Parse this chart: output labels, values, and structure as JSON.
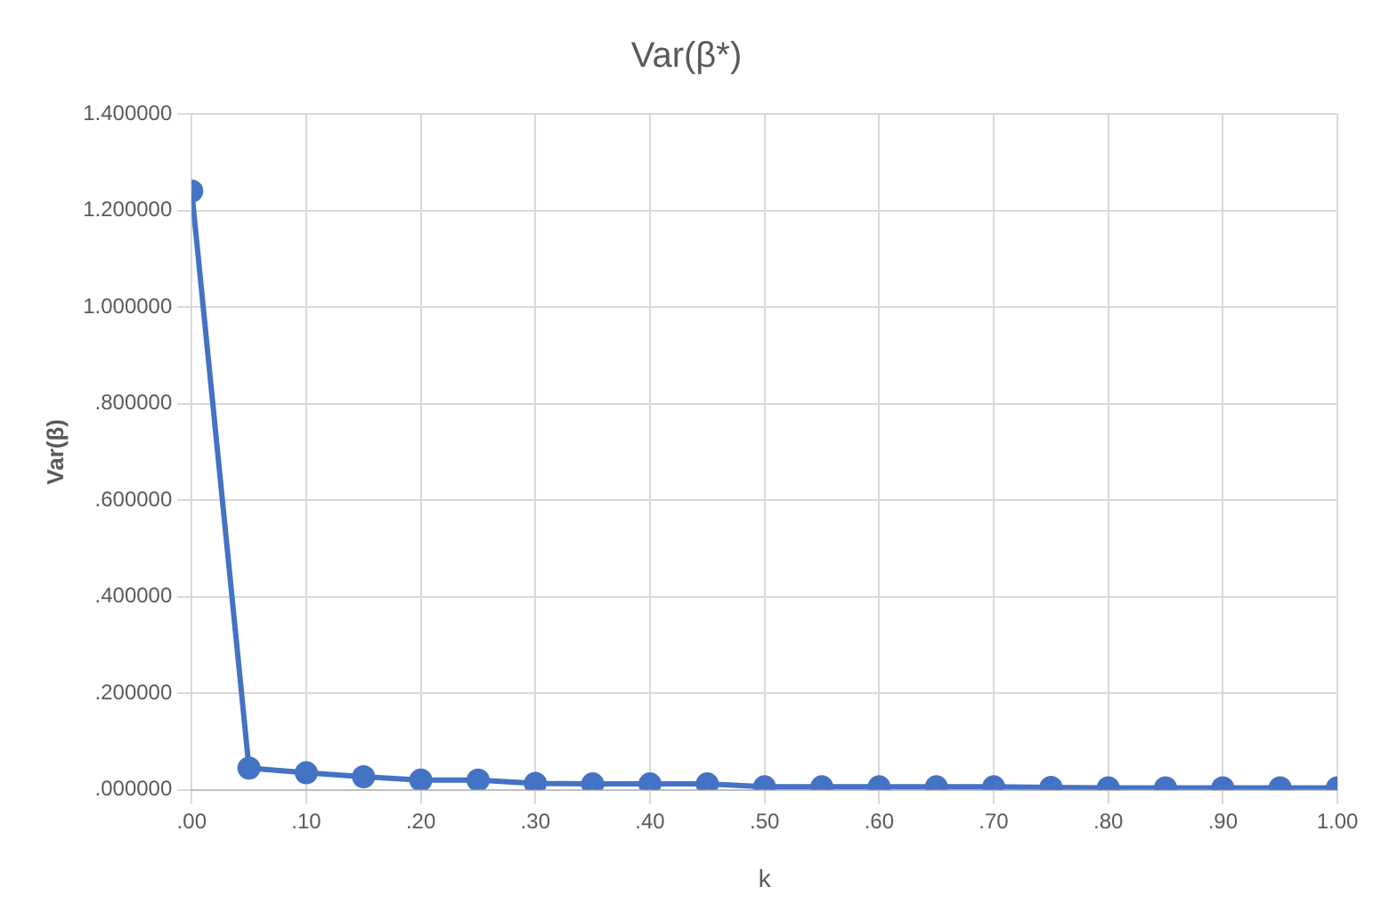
{
  "chart_data": {
    "type": "line",
    "title": "Var(β*)",
    "xlabel": "k",
    "ylabel": "Var(β)",
    "x": [
      0,
      0.05,
      0.1,
      0.15,
      0.2,
      0.25,
      0.3,
      0.35,
      0.4,
      0.45,
      0.5,
      0.55,
      0.6,
      0.65,
      0.7,
      0.75,
      0.8,
      0.85,
      0.9,
      0.95,
      1.0
    ],
    "series": [
      {
        "color": "#4472c4",
        "values": [
          1.24,
          0.045,
          0.035,
          0.027,
          0.02,
          0.02,
          0.013,
          0.012,
          0.012,
          0.012,
          0.006,
          0.006,
          0.006,
          0.006,
          0.006,
          0.005,
          0.004,
          0.004,
          0.004,
          0.004,
          0.004
        ]
      }
    ],
    "xlim": [
      0,
      1
    ],
    "xticks": [
      {
        "value": 0,
        "label": ".00"
      },
      {
        "value": 0.1,
        "label": ".10"
      },
      {
        "value": 0.2,
        "label": ".20"
      },
      {
        "value": 0.3,
        "label": ".30"
      },
      {
        "value": 0.4,
        "label": ".40"
      },
      {
        "value": 0.5,
        "label": ".50"
      },
      {
        "value": 0.6,
        "label": ".60"
      },
      {
        "value": 0.7,
        "label": ".70"
      },
      {
        "value": 0.8,
        "label": ".80"
      },
      {
        "value": 0.9,
        "label": ".90"
      },
      {
        "value": 1.0,
        "label": "1.00"
      }
    ],
    "ylim": [
      0,
      1.4
    ],
    "yticks": [
      {
        "value": 0,
        "label": ".000000"
      },
      {
        "value": 0.2,
        "label": ".200000"
      },
      {
        "value": 0.4,
        "label": ".400000"
      },
      {
        "value": 0.6,
        "label": ".600000"
      },
      {
        "value": 0.8,
        "label": ".800000"
      },
      {
        "value": 1.0,
        "label": "1.000000"
      },
      {
        "value": 1.2,
        "label": "1.200000"
      },
      {
        "value": 1.4,
        "label": "1.400000"
      }
    ],
    "grid": true,
    "marker": "circle",
    "line_style": "solid"
  }
}
